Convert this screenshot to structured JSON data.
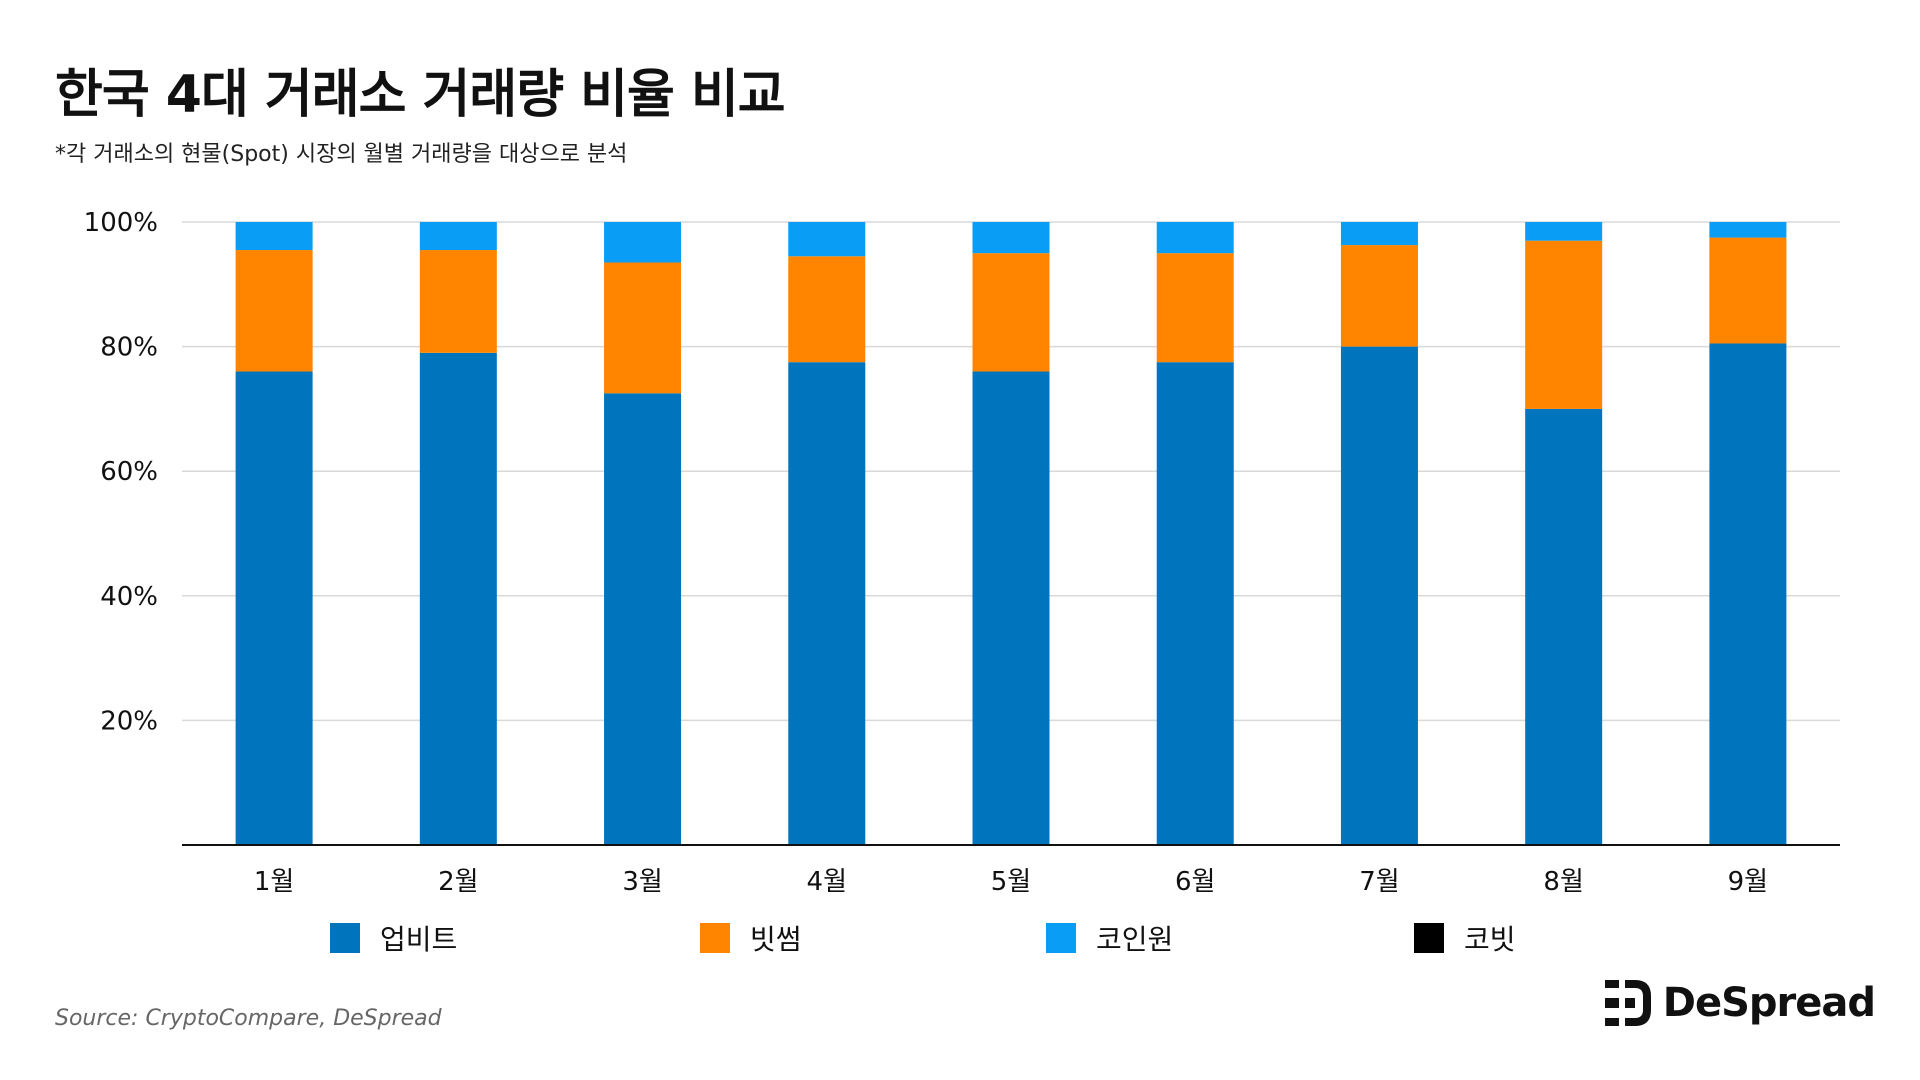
{
  "header": {
    "title": "한국 4대 거래소 거래량 비율 비교",
    "subtitle": "*각 거래소의 현물(Spot) 시장의 월별 거래량을 대상으로 분석"
  },
  "footer": {
    "source": "Source: CryptoCompare, DeSpread",
    "brand": "DeSpread"
  },
  "colors": {
    "upbit": "#0075BD",
    "bithumb": "#FF8500",
    "coinone": "#0A9DF5",
    "korbit": "#000000",
    "grid": "#D9D9D9",
    "axis": "#111111"
  },
  "chart_data": {
    "type": "bar",
    "stacked": true,
    "categories": [
      "1월",
      "2월",
      "3월",
      "4월",
      "5월",
      "6월",
      "7월",
      "8월",
      "9월"
    ],
    "series": [
      {
        "name": "업비트",
        "color": "#0075BD",
        "values": [
          76,
          79,
          72.5,
          77.5,
          76,
          77.5,
          80,
          70,
          80.5
        ]
      },
      {
        "name": "빗썸",
        "color": "#FF8500",
        "values": [
          19.5,
          16.5,
          21,
          17,
          19,
          17.5,
          16.3,
          27,
          17
        ]
      },
      {
        "name": "코인원",
        "color": "#0A9DF5",
        "values": [
          4.5,
          4.5,
          6.5,
          5.5,
          5,
          5,
          3.7,
          3,
          2.5
        ]
      },
      {
        "name": "코빗",
        "color": "#000000",
        "values": [
          0,
          0,
          0,
          0,
          0,
          0,
          0,
          0,
          0
        ]
      }
    ],
    "ylim": [
      0,
      100
    ],
    "yticks": [
      "20%",
      "40%",
      "60%",
      "80%",
      "100%"
    ],
    "ytick_values": [
      20,
      40,
      60,
      80,
      100
    ],
    "grid": true,
    "legend_position": "bottom"
  }
}
